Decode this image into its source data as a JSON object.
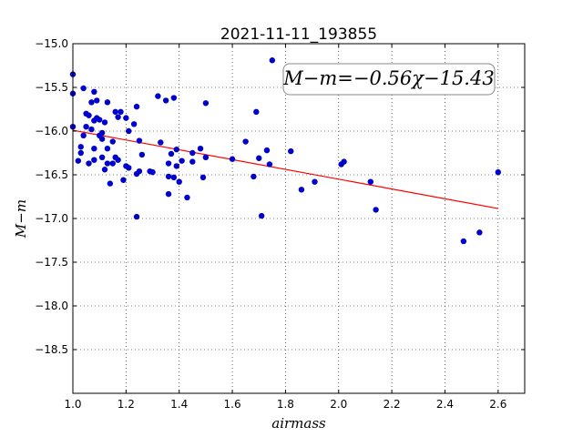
{
  "chart_data": {
    "type": "scatter",
    "title": "2021-11-11_193855",
    "xlabel": "airmass",
    "ylabel": "M−m",
    "xlim": [
      1.0,
      2.7
    ],
    "ylim": [
      -15.0,
      -19.0
    ],
    "y_inverted": true,
    "xticks": [
      "1.0",
      "1.2",
      "1.4",
      "1.6",
      "1.8",
      "2.0",
      "2.2",
      "2.4",
      "2.6"
    ],
    "yticks": [
      "−15.0",
      "−15.5",
      "−16.0",
      "−16.5",
      "−17.0",
      "−17.5",
      "−18.0",
      "−18.5"
    ],
    "grid": true,
    "annotation": "M−m=−0.56χ−15.43",
    "fit": {
      "slope": -0.56,
      "intercept": -15.43,
      "x_range": [
        1.0,
        2.6
      ],
      "color": "#ff0000"
    },
    "marker_color": "#0000cc",
    "points": [
      {
        "x": 1.0,
        "y": -15.35
      },
      {
        "x": 1.0,
        "y": -15.57
      },
      {
        "x": 1.0,
        "y": -15.95
      },
      {
        "x": 1.02,
        "y": -16.34
      },
      {
        "x": 1.03,
        "y": -16.18
      },
      {
        "x": 1.03,
        "y": -16.25
      },
      {
        "x": 1.04,
        "y": -16.05
      },
      {
        "x": 1.04,
        "y": -15.51
      },
      {
        "x": 1.05,
        "y": -15.8
      },
      {
        "x": 1.05,
        "y": -15.95
      },
      {
        "x": 1.06,
        "y": -15.82
      },
      {
        "x": 1.06,
        "y": -16.37
      },
      {
        "x": 1.07,
        "y": -15.67
      },
      {
        "x": 1.07,
        "y": -15.98
      },
      {
        "x": 1.08,
        "y": -15.55
      },
      {
        "x": 1.08,
        "y": -15.88
      },
      {
        "x": 1.08,
        "y": -16.2
      },
      {
        "x": 1.08,
        "y": -16.33
      },
      {
        "x": 1.09,
        "y": -15.65
      },
      {
        "x": 1.09,
        "y": -15.85
      },
      {
        "x": 1.1,
        "y": -15.87
      },
      {
        "x": 1.1,
        "y": -16.05
      },
      {
        "x": 1.11,
        "y": -16.02
      },
      {
        "x": 1.11,
        "y": -16.09
      },
      {
        "x": 1.11,
        "y": -16.3
      },
      {
        "x": 1.12,
        "y": -15.9
      },
      {
        "x": 1.12,
        "y": -16.44
      },
      {
        "x": 1.13,
        "y": -15.67
      },
      {
        "x": 1.13,
        "y": -16.2
      },
      {
        "x": 1.13,
        "y": -16.37
      },
      {
        "x": 1.14,
        "y": -16.6
      },
      {
        "x": 1.15,
        "y": -16.12
      },
      {
        "x": 1.15,
        "y": -16.37
      },
      {
        "x": 1.16,
        "y": -15.78
      },
      {
        "x": 1.16,
        "y": -16.3
      },
      {
        "x": 1.17,
        "y": -16.33
      },
      {
        "x": 1.17,
        "y": -15.84
      },
      {
        "x": 1.18,
        "y": -15.78
      },
      {
        "x": 1.19,
        "y": -16.56
      },
      {
        "x": 1.2,
        "y": -16.4
      },
      {
        "x": 1.2,
        "y": -15.85
      },
      {
        "x": 1.21,
        "y": -16.0
      },
      {
        "x": 1.21,
        "y": -16.42
      },
      {
        "x": 1.23,
        "y": -15.92
      },
      {
        "x": 1.24,
        "y": -15.72
      },
      {
        "x": 1.24,
        "y": -16.49
      },
      {
        "x": 1.24,
        "y": -16.98
      },
      {
        "x": 1.25,
        "y": -16.46
      },
      {
        "x": 1.25,
        "y": -16.11
      },
      {
        "x": 1.26,
        "y": -16.27
      },
      {
        "x": 1.29,
        "y": -16.46
      },
      {
        "x": 1.3,
        "y": -16.47
      },
      {
        "x": 1.32,
        "y": -15.6
      },
      {
        "x": 1.33,
        "y": -16.13
      },
      {
        "x": 1.35,
        "y": -15.65
      },
      {
        "x": 1.36,
        "y": -16.52
      },
      {
        "x": 1.36,
        "y": -16.72
      },
      {
        "x": 1.36,
        "y": -16.37
      },
      {
        "x": 1.37,
        "y": -16.26
      },
      {
        "x": 1.38,
        "y": -16.53
      },
      {
        "x": 1.38,
        "y": -15.62
      },
      {
        "x": 1.39,
        "y": -16.21
      },
      {
        "x": 1.39,
        "y": -16.4
      },
      {
        "x": 1.4,
        "y": -16.58
      },
      {
        "x": 1.41,
        "y": -16.34
      },
      {
        "x": 1.43,
        "y": -16.76
      },
      {
        "x": 1.45,
        "y": -16.25
      },
      {
        "x": 1.45,
        "y": -16.35
      },
      {
        "x": 1.48,
        "y": -16.2
      },
      {
        "x": 1.49,
        "y": -16.53
      },
      {
        "x": 1.5,
        "y": -16.3
      },
      {
        "x": 1.5,
        "y": -15.68
      },
      {
        "x": 1.6,
        "y": -16.32
      },
      {
        "x": 1.65,
        "y": -16.12
      },
      {
        "x": 1.68,
        "y": -16.52
      },
      {
        "x": 1.69,
        "y": -15.78
      },
      {
        "x": 1.7,
        "y": -16.31
      },
      {
        "x": 1.71,
        "y": -16.97
      },
      {
        "x": 1.73,
        "y": -16.22
      },
      {
        "x": 1.74,
        "y": -16.38
      },
      {
        "x": 1.75,
        "y": -15.19
      },
      {
        "x": 1.82,
        "y": -16.23
      },
      {
        "x": 1.86,
        "y": -16.67
      },
      {
        "x": 1.91,
        "y": -16.58
      },
      {
        "x": 2.01,
        "y": -16.38
      },
      {
        "x": 2.02,
        "y": -16.35
      },
      {
        "x": 2.12,
        "y": -16.58
      },
      {
        "x": 2.14,
        "y": -16.9
      },
      {
        "x": 2.47,
        "y": -17.26
      },
      {
        "x": 2.53,
        "y": -17.16
      },
      {
        "x": 2.6,
        "y": -16.47
      }
    ]
  }
}
